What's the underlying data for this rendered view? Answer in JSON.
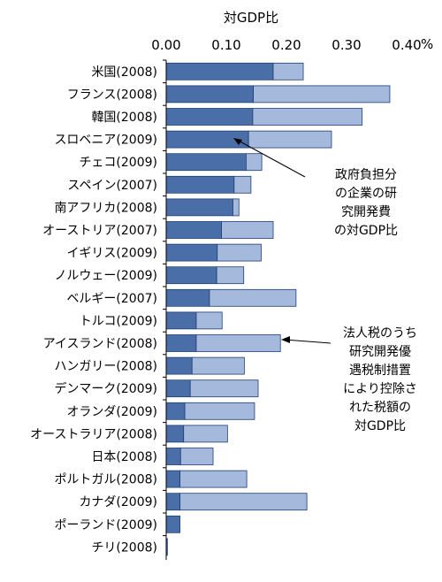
{
  "chart_data": {
    "type": "bar",
    "stacked": true,
    "orientation": "horizontal",
    "title": "",
    "xlabel": "対GDP比",
    "xlim": [
      0,
      0.4
    ],
    "x_ticks": [
      "0.00",
      "0.10",
      "0.20",
      "0.30",
      "0.40"
    ],
    "x_unit": "%",
    "grid": false,
    "categories": [
      "米国(2008)",
      "フランス(2008)",
      "韓国(2008)",
      "スロベニア(2009)",
      "チェコ(2009)",
      "スペイン(2007)",
      "南アフリカ(2008)",
      "オーストリア(2007)",
      "イギリス(2009)",
      "ノルウェー(2009)",
      "ベルギー(2007)",
      "トルコ(2009)",
      "アイスランド(2008)",
      "ハンガリー(2008)",
      "デンマーク(2009)",
      "オランダ(2009)",
      "オーストラリア(2008)",
      "日本(2008)",
      "ポルトガル(2008)",
      "カナダ(2009)",
      "ポーランド(2009)",
      "チリ(2008)"
    ],
    "series": [
      {
        "name": "政府負担分の企業の研究開発費の対GDP比",
        "color": "#4a6fa8",
        "values": [
          0.178,
          0.145,
          0.144,
          0.137,
          0.133,
          0.113,
          0.111,
          0.092,
          0.085,
          0.084,
          0.072,
          0.05,
          0.05,
          0.043,
          0.04,
          0.031,
          0.029,
          0.024,
          0.023,
          0.023,
          0.023,
          0.002
        ]
      },
      {
        "name": "法人税のうち研究開発優遇税制措置により控除された税額の対GDP比",
        "color": "#a4b9dc",
        "values": [
          0.05,
          0.227,
          0.182,
          0.138,
          0.026,
          0.028,
          0.01,
          0.086,
          0.073,
          0.045,
          0.144,
          0.043,
          0.14,
          0.087,
          0.113,
          0.116,
          0.073,
          0.054,
          0.111,
          0.211,
          0.0,
          0.0
        ]
      }
    ]
  },
  "annotations": [
    "政府負担分\nの企業の研\n究開発費\nの対GDP比",
    "法人税のうち\n研究開発優\n遇税制措置\nにより控除さ\nれた税額の\n対GDP比"
  ]
}
